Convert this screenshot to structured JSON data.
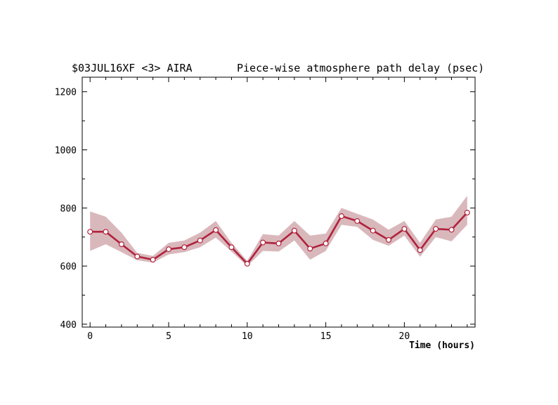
{
  "header": {
    "id": "$03JUL16XF <3>  AIRA",
    "title": "Piece-wise atmosphere path delay (psec)"
  },
  "colors": {
    "line": "#b0223c",
    "band": "#d9b8bc",
    "axis": "#000000",
    "point_fill": "#ffffff"
  },
  "chart_data": {
    "type": "line",
    "title": "Piece-wise atmosphere path delay (psec)",
    "xlabel": "Time (hours)",
    "ylabel": "",
    "xlim": [
      -0.5,
      24.5
    ],
    "ylim": [
      390,
      1250
    ],
    "xticks": [
      0,
      5,
      10,
      15,
      20
    ],
    "yticks": [
      400,
      600,
      800,
      1000,
      1200
    ],
    "grid": false,
    "series": [
      {
        "x": [
          0,
          1,
          2,
          3,
          4,
          5,
          6,
          7,
          8,
          9,
          10,
          11,
          12,
          13,
          14,
          15,
          16,
          17,
          18,
          19,
          20,
          21,
          22,
          23,
          24
        ],
        "values": [
          718,
          718,
          675,
          633,
          622,
          658,
          665,
          688,
          724,
          665,
          608,
          681,
          678,
          722,
          660,
          678,
          772,
          755,
          722,
          690,
          728,
          655,
          728,
          725,
          784
        ],
        "upper": [
          788,
          770,
          715,
          645,
          635,
          680,
          688,
          715,
          755,
          680,
          618,
          710,
          705,
          755,
          705,
          712,
          800,
          780,
          760,
          725,
          755,
          680,
          760,
          770,
          842
        ],
        "lower": [
          652,
          675,
          648,
          620,
          612,
          640,
          648,
          665,
          698,
          650,
          600,
          652,
          650,
          688,
          622,
          652,
          742,
          735,
          690,
          670,
          705,
          632,
          700,
          685,
          742
        ]
      }
    ]
  }
}
